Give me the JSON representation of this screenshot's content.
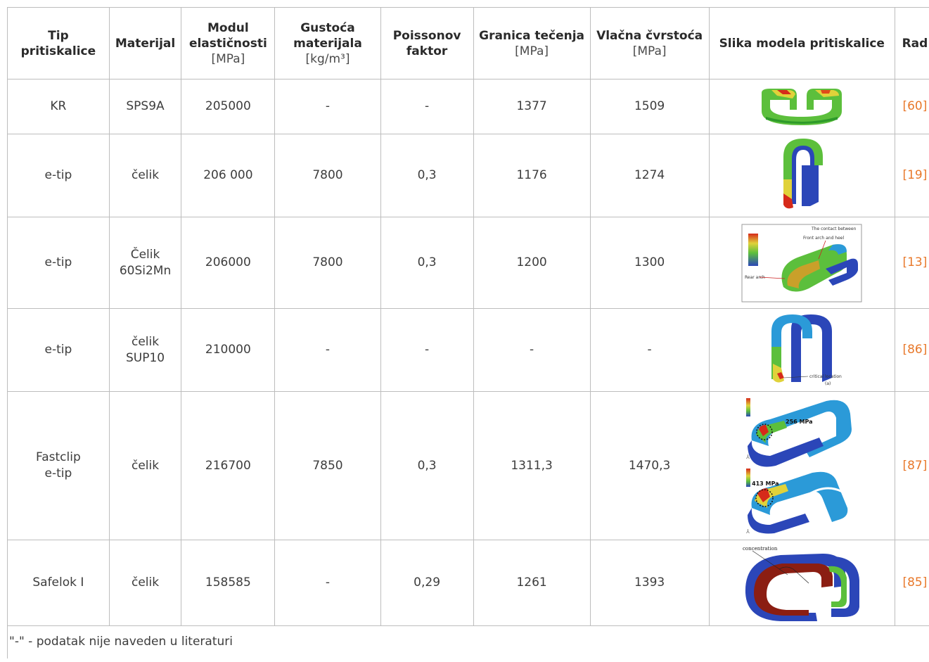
{
  "headers": [
    {
      "label": "Tip pritiskalice",
      "unit": ""
    },
    {
      "label": "Materijal",
      "unit": ""
    },
    {
      "label": "Modul elastičnosti",
      "unit": "[MPa]"
    },
    {
      "label": "Gustoća materijala",
      "unit": "[kg/m³]"
    },
    {
      "label": "Poissonov faktor",
      "unit": ""
    },
    {
      "label": "Granica tečenja",
      "unit": "[MPa]"
    },
    {
      "label": "Vlačna čvrstoća",
      "unit": "[MPa]"
    },
    {
      "label": "Slika modela pritiskalice",
      "unit": ""
    },
    {
      "label": "Rad",
      "unit": ""
    }
  ],
  "rows": [
    {
      "tip": [
        "KR"
      ],
      "material": [
        "SPS9A"
      ],
      "modulus": "205000",
      "density": "-",
      "poisson": "-",
      "yield": "1377",
      "tensile": "1509",
      "image_icon": "clip-model-kr-image",
      "ref": "[60]"
    },
    {
      "tip": [
        "e-tip"
      ],
      "material": [
        "čelik"
      ],
      "modulus": "206 000",
      "density": "7800",
      "poisson": "0,3",
      "yield": "1176",
      "tensile": "1274",
      "image_icon": "clip-model-etip-image",
      "ref": "[19]"
    },
    {
      "tip": [
        "e-tip"
      ],
      "material": [
        "Čelik",
        "60Si2Mn"
      ],
      "modulus": "206000",
      "density": "7800",
      "poisson": "0,3",
      "yield": "1200",
      "tensile": "1300",
      "image_icon": "clip-model-annotated-image",
      "ref": "[13]",
      "image_labels": [
        "The contact between",
        "Front arch and heel",
        "Rear arch"
      ]
    },
    {
      "tip": [
        "e-tip"
      ],
      "material": [
        "čelik",
        "SUP10"
      ],
      "modulus": "210000",
      "density": "-",
      "poisson": "-",
      "yield": "-",
      "tensile": "-",
      "image_icon": "clip-model-critical-image",
      "ref": "[86]",
      "image_labels": [
        "critical location",
        "(a)"
      ]
    },
    {
      "tip": [
        "Fastclip",
        "e-tip"
      ],
      "material": [
        "čelik"
      ],
      "modulus": "216700",
      "density": "7850",
      "poisson": "0,3",
      "yield": "1311,3",
      "tensile": "1470,3",
      "image_icon": "clip-model-stress-image",
      "ref": "[87]",
      "image_labels": [
        "256 MPa",
        "413 MPa"
      ]
    },
    {
      "tip": [
        "Safelok I"
      ],
      "material": [
        "čelik"
      ],
      "modulus": "158585",
      "density": "-",
      "poisson": "0,29",
      "yield": "1261",
      "tensile": "1393",
      "image_icon": "clip-model-safelok-image",
      "ref": "[85]",
      "image_labels": [
        "concentration"
      ]
    }
  ],
  "footnote": "\"-\" - podatak nije naveden u literaturi",
  "colors": {
    "ref": "#e8782a",
    "border": "#bdbdbd",
    "fem_green": "#5cbf3c",
    "fem_blue": "#2b46b8",
    "fem_red": "#d62a1a"
  }
}
